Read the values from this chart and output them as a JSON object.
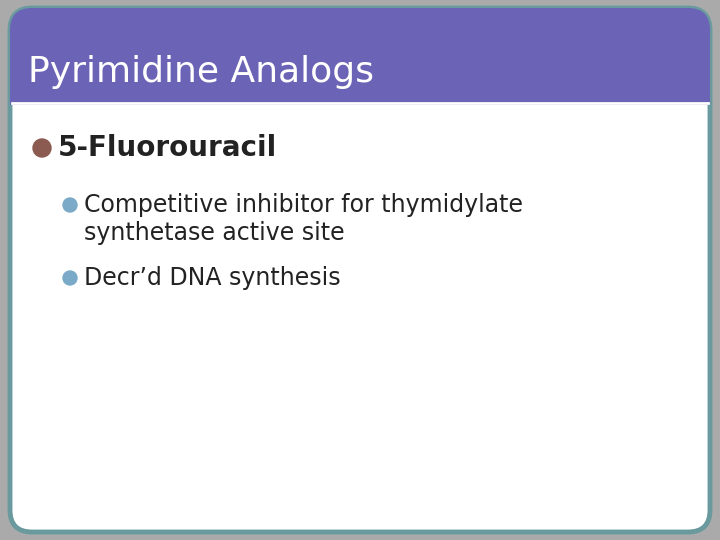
{
  "title": "Pyrimidine Analogs",
  "title_bg_color": "#6B63B5",
  "title_text_color": "#FFFFFF",
  "slide_bg_color": "#FFFFFF",
  "border_color": "#6A9A9E",
  "main_bullet": "5-Fluorouracil",
  "main_bullet_color": "#222222",
  "main_bullet_dot_color": "#8B5A50",
  "sub_bullets": [
    "Competitive inhibitor for thymidylate\nsynthetase active site",
    "Decr’d DNA synthesis"
  ],
  "sub_bullet_dot_color": "#7AAAC8",
  "sub_bullet_text_color": "#222222",
  "title_fontsize": 26,
  "main_bullet_fontsize": 20,
  "sub_bullet_fontsize": 17
}
